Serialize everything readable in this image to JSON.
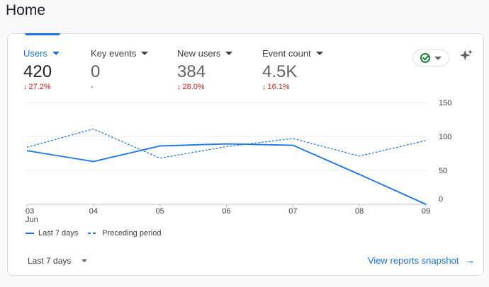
{
  "page": {
    "title": "Home"
  },
  "metrics": [
    {
      "label": "Users",
      "value": "420",
      "change": "27.2%",
      "direction": "down"
    },
    {
      "label": "Key events",
      "value": "0",
      "change": "-",
      "direction": "none"
    },
    {
      "label": "New users",
      "value": "384",
      "change": "28.0%",
      "direction": "down"
    },
    {
      "label": "Event count",
      "value": "4.5K",
      "change": "16.1%",
      "direction": "down"
    }
  ],
  "icons": {
    "down_arrow": "↓",
    "right_arrow": "→",
    "compare": "check-circle-icon",
    "insights": "sparkle-icon"
  },
  "colors": {
    "accent": "#1a73e8",
    "negative": "#c5221f",
    "positive": "#188038"
  },
  "legend": {
    "current": "Last 7 days",
    "previous": "Preceding period"
  },
  "footer": {
    "range_label": "Last 7 days",
    "view_link": "View reports snapshot"
  },
  "chart_data": {
    "type": "line",
    "categories": [
      "03",
      "04",
      "05",
      "06",
      "07",
      "08",
      "09"
    ],
    "x_sublabel": "Jun",
    "y_ticks": [
      "150",
      "100",
      "50",
      "0"
    ],
    "ylim": [
      0,
      150
    ],
    "series": [
      {
        "name": "Last 7 days",
        "style": "solid",
        "values": [
          79,
          63,
          86,
          89,
          87,
          44,
          0
        ]
      },
      {
        "name": "Preceding period",
        "style": "dashed",
        "values": [
          84,
          111,
          68,
          85,
          97,
          71,
          94
        ]
      }
    ],
    "grid": true
  }
}
